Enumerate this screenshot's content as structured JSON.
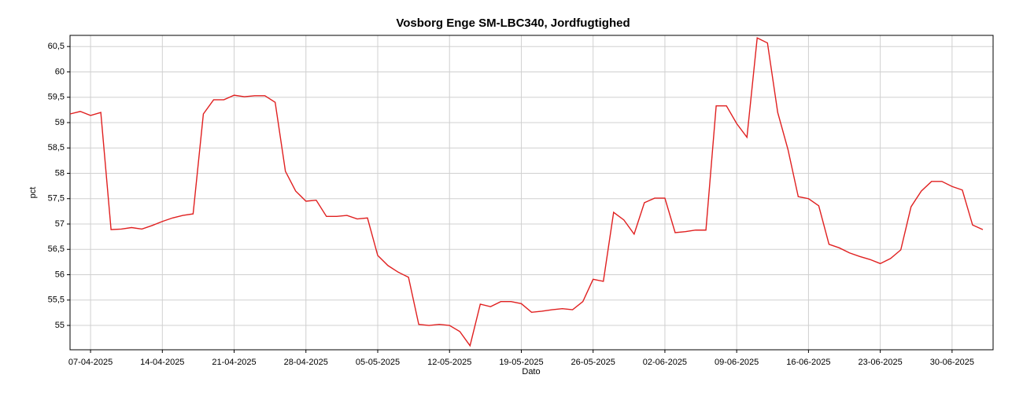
{
  "chart_data": {
    "type": "line",
    "title": "Vosborg Enge SM-LBC340, Jordfugtighed",
    "x_label": "Dato",
    "y_label": "pct",
    "grid": true,
    "xlim": [
      "2025-04-05",
      "2025-07-04"
    ],
    "xticks": [
      {
        "value": "2025-04-07",
        "label": "07-04-2025"
      },
      {
        "value": "2025-04-14",
        "label": "14-04-2025"
      },
      {
        "value": "2025-04-21",
        "label": "21-04-2025"
      },
      {
        "value": "2025-04-28",
        "label": "28-04-2025"
      },
      {
        "value": "2025-05-05",
        "label": "05-05-2025"
      },
      {
        "value": "2025-05-12",
        "label": "12-05-2025"
      },
      {
        "value": "2025-05-19",
        "label": "19-05-2025"
      },
      {
        "value": "2025-05-26",
        "label": "26-05-2025"
      },
      {
        "value": "2025-06-02",
        "label": "02-06-2025"
      },
      {
        "value": "2025-06-09",
        "label": "09-06-2025"
      },
      {
        "value": "2025-06-16",
        "label": "16-06-2025"
      },
      {
        "value": "2025-06-23",
        "label": "23-06-2025"
      },
      {
        "value": "2025-06-30",
        "label": "30-06-2025"
      }
    ],
    "ylim": [
      54.52,
      60.72
    ],
    "yticks": [
      55,
      {
        "value": 55.5,
        "label": "55,5"
      },
      56,
      {
        "value": 56.5,
        "label": "56,5"
      },
      57,
      {
        "value": 57.5,
        "label": "57,5"
      },
      58,
      {
        "value": 58.5,
        "label": "58,5"
      },
      59,
      {
        "value": 59.5,
        "label": "59,5"
      },
      60,
      {
        "value": 60.5,
        "label": "60,5"
      }
    ],
    "x": [
      "2025-04-05",
      "2025-04-06",
      "2025-04-07",
      "2025-04-08",
      "2025-04-09",
      "2025-04-10",
      "2025-04-11",
      "2025-04-12",
      "2025-04-13",
      "2025-04-14",
      "2025-04-15",
      "2025-04-16",
      "2025-04-17",
      "2025-04-18",
      "2025-04-19",
      "2025-04-20",
      "2025-04-21",
      "2025-04-22",
      "2025-04-23",
      "2025-04-24",
      "2025-04-25",
      "2025-04-26",
      "2025-04-27",
      "2025-04-28",
      "2025-04-29",
      "2025-04-30",
      "2025-05-01",
      "2025-05-02",
      "2025-05-03",
      "2025-05-04",
      "2025-05-05",
      "2025-05-06",
      "2025-05-07",
      "2025-05-08",
      "2025-05-09",
      "2025-05-10",
      "2025-05-11",
      "2025-05-12",
      "2025-05-13",
      "2025-05-14",
      "2025-05-15",
      "2025-05-16",
      "2025-05-17",
      "2025-05-18",
      "2025-05-19",
      "2025-05-20",
      "2025-05-21",
      "2025-05-22",
      "2025-05-23",
      "2025-05-24",
      "2025-05-25",
      "2025-05-26",
      "2025-05-27",
      "2025-05-28",
      "2025-05-29",
      "2025-05-30",
      "2025-05-31",
      "2025-06-01",
      "2025-06-02",
      "2025-06-03",
      "2025-06-04",
      "2025-06-05",
      "2025-06-06",
      "2025-06-07",
      "2025-06-08",
      "2025-06-09",
      "2025-06-10",
      "2025-06-11",
      "2025-06-12",
      "2025-06-13",
      "2025-06-14",
      "2025-06-15",
      "2025-06-16",
      "2025-06-17",
      "2025-06-18",
      "2025-06-19",
      "2025-06-20",
      "2025-06-21",
      "2025-06-22",
      "2025-06-23",
      "2025-06-24",
      "2025-06-25",
      "2025-06-26",
      "2025-06-27",
      "2025-06-28",
      "2025-06-29",
      "2025-06-30",
      "2025-07-01",
      "2025-07-02",
      "2025-07-03"
    ],
    "series": [
      {
        "color": "#e02020",
        "values": [
          59.17,
          59.22,
          59.14,
          59.2,
          56.89,
          56.9,
          56.93,
          56.9,
          56.97,
          57.05,
          57.12,
          57.17,
          57.2,
          59.17,
          59.45,
          59.45,
          59.54,
          59.51,
          59.53,
          59.53,
          59.4,
          58.04,
          57.65,
          57.45,
          57.47,
          57.15,
          57.15,
          57.17,
          57.1,
          57.12,
          56.38,
          56.18,
          56.05,
          55.95,
          55.02,
          55,
          55.02,
          55,
          54.88,
          54.6,
          55.42,
          55.37,
          55.47,
          55.47,
          55.43,
          55.26,
          55.28,
          55.31,
          55.33,
          55.31,
          55.47,
          55.91,
          55.87,
          57.23,
          57.08,
          56.8,
          57.42,
          57.51,
          57.51,
          56.83,
          56.85,
          56.88,
          56.88,
          59.33,
          59.33,
          58.98,
          58.71,
          60.67,
          60.57,
          59.2,
          58.47,
          57.54,
          57.5,
          57.36,
          56.6,
          56.53,
          56.43,
          56.36,
          56.3,
          56.22,
          56.32,
          56.49,
          57.34,
          57.65,
          57.84,
          57.84,
          57.74,
          57.67,
          56.98,
          56.89
        ]
      }
    ]
  }
}
